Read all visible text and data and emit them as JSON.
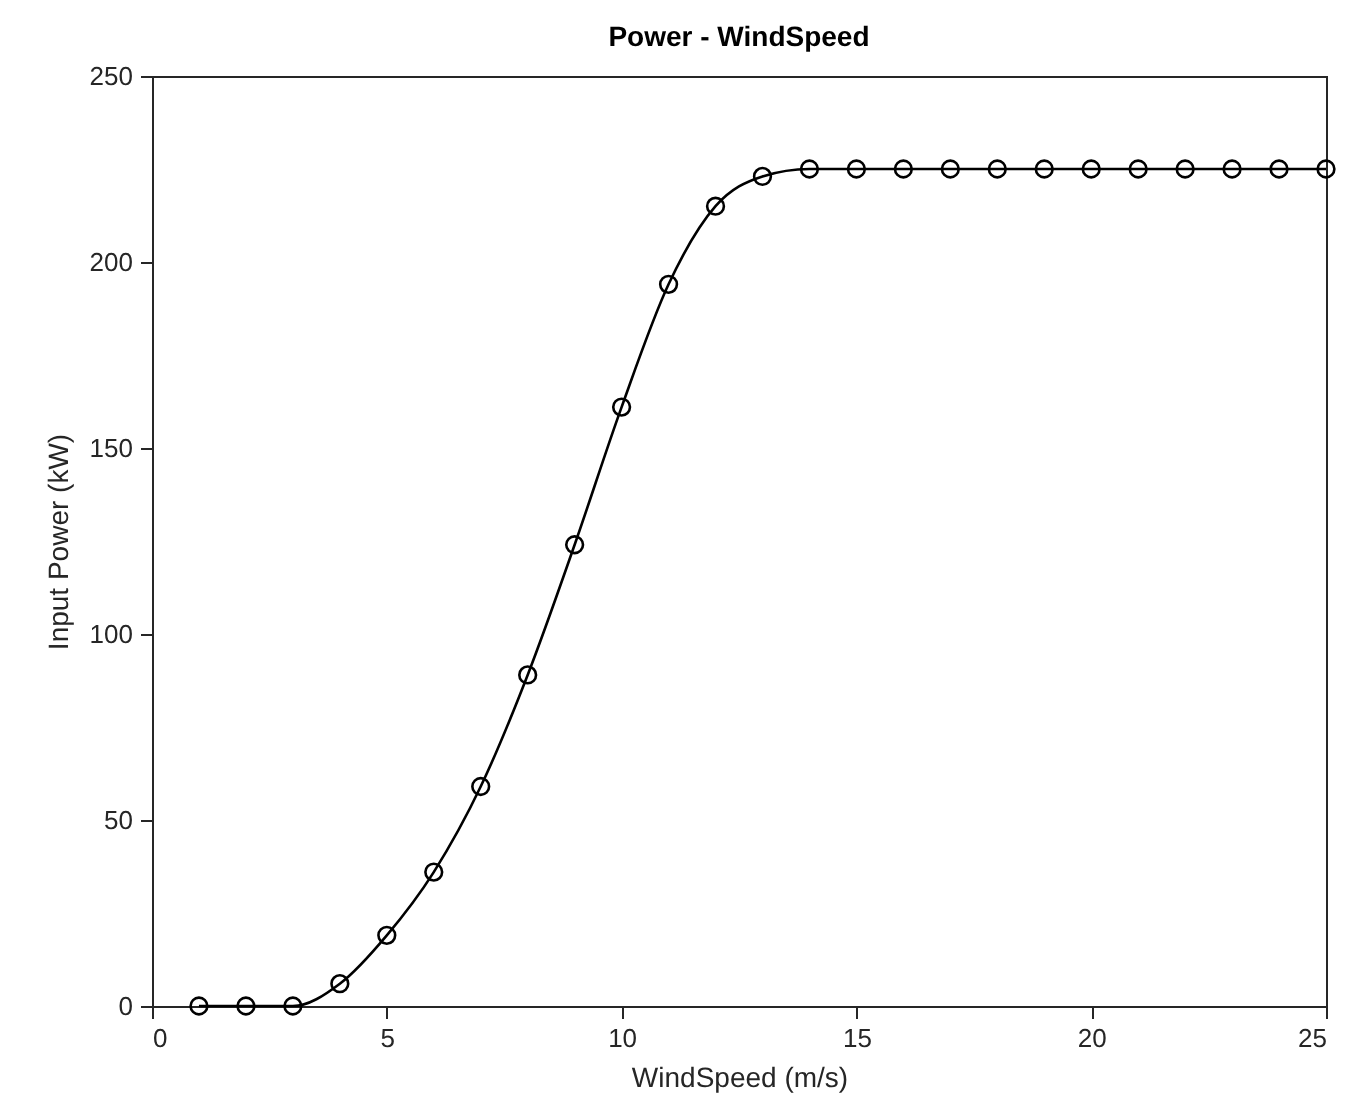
{
  "chart_data": {
    "type": "line",
    "title": "Power - WindSpeed",
    "xlabel": "WindSpeed (m/s)",
    "ylabel": "Input Power (kW)",
    "x": [
      1,
      2,
      3,
      4,
      5,
      6,
      7,
      8,
      9,
      10,
      11,
      12,
      13,
      14,
      15,
      16,
      17,
      18,
      19,
      20,
      21,
      22,
      23,
      24,
      25
    ],
    "series": [
      {
        "color": "#000000",
        "values": [
          0,
          0,
          0,
          6,
          19,
          36,
          59,
          89,
          124,
          161,
          194,
          215,
          223,
          225,
          225,
          225,
          225,
          225,
          225,
          225,
          225,
          225,
          225,
          225,
          225
        ]
      }
    ],
    "xlim": [
      0,
      25
    ],
    "xticks": [
      0,
      5,
      10,
      15,
      20,
      25
    ],
    "ylim": [
      0,
      250
    ],
    "yticks": [
      0,
      50,
      100,
      150,
      200,
      250
    ],
    "marker": "circle",
    "line_style": "solid",
    "grid": false,
    "legend": false
  }
}
